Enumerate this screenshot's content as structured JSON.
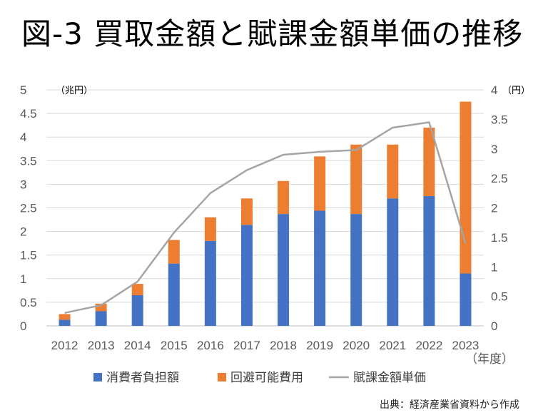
{
  "title": "図-3 買取金額と賦課金額単価の推移",
  "source": "出典：経済産業省資料から作成",
  "colors": {
    "consumer": "#4472C4",
    "avoidable": "#ED7D31",
    "unit_price": "#A5A5A5",
    "grid": "#D9D9D9"
  },
  "chart_data": {
    "type": "bar",
    "stacked": true,
    "categories": [
      "2012",
      "2013",
      "2014",
      "2015",
      "2016",
      "2017",
      "2018",
      "2019",
      "2020",
      "2021",
      "2022",
      "2023"
    ],
    "series": [
      {
        "name": "消費者負担額",
        "axis": "left",
        "values": [
          0.13,
          0.31,
          0.65,
          1.32,
          1.8,
          2.14,
          2.37,
          2.44,
          2.37,
          2.7,
          2.75,
          1.11
        ]
      },
      {
        "name": "回避可能費用",
        "axis": "left",
        "values": [
          0.12,
          0.16,
          0.24,
          0.5,
          0.5,
          0.56,
          0.7,
          1.15,
          1.47,
          1.14,
          1.45,
          3.64
        ]
      },
      {
        "name": "賦課金額単価",
        "axis": "right",
        "type": "line",
        "values": [
          0.22,
          0.35,
          0.75,
          1.58,
          2.25,
          2.64,
          2.9,
          2.95,
          2.98,
          3.36,
          3.45,
          1.4
        ]
      }
    ],
    "left_axis": {
      "label": "（兆円）",
      "ylim": [
        0,
        5
      ],
      "ticks": [
        "0",
        "0.5",
        "1",
        "1.5",
        "2",
        "2.5",
        "3",
        "3.5",
        "4",
        "4.5",
        "5"
      ]
    },
    "right_axis": {
      "label": "（円）",
      "ylim": [
        0,
        4
      ],
      "ticks": [
        "0",
        "0.5",
        "1",
        "1.5",
        "2",
        "2.5",
        "3",
        "3.5",
        "4"
      ]
    },
    "xlabel": "（年度）",
    "grid": true,
    "legend_position": "bottom"
  }
}
